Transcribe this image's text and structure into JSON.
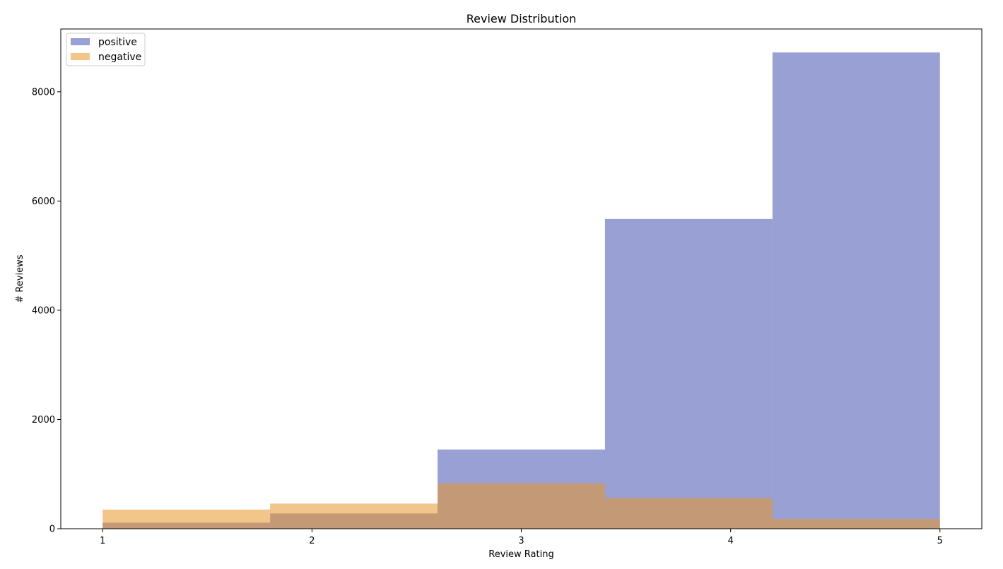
{
  "chart_data": {
    "type": "bar",
    "title": "Review Distribution",
    "xlabel": "Review Rating",
    "ylabel": "# Reviews",
    "xlim": [
      0.8,
      5.2
    ],
    "ylim": [
      0,
      9150
    ],
    "xticks": [
      1,
      2,
      3,
      4,
      5
    ],
    "yticks": [
      0,
      2000,
      4000,
      6000,
      8000
    ],
    "bin_edges": [
      1.0,
      1.8,
      2.6,
      3.4,
      4.2,
      5.0
    ],
    "legend_position": "top-left",
    "grid": false,
    "series": [
      {
        "name": "positive",
        "color": "#3441a8",
        "opacity": 0.5,
        "values": [
          110,
          280,
          1450,
          5670,
          8720
        ]
      },
      {
        "name": "negative",
        "color": "#e8952a",
        "opacity": 0.55,
        "values": [
          350,
          460,
          830,
          560,
          180
        ]
      }
    ]
  }
}
